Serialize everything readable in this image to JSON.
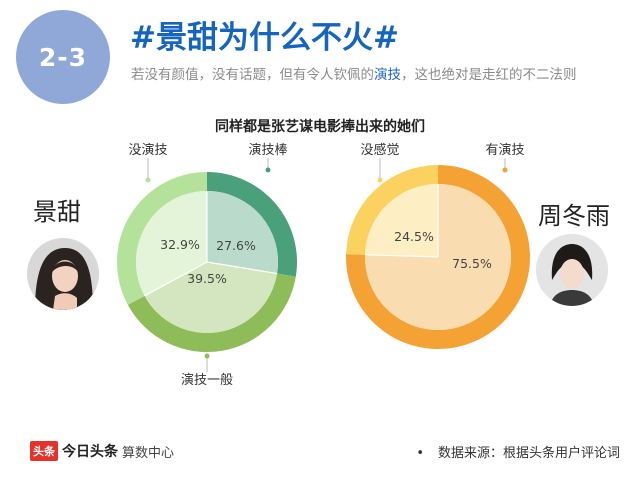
{
  "header": {
    "badge": "2-3",
    "title": "#景甜为什么不火#",
    "subtitle_before": "若没有颜值，没有话题，但有令人钦佩的",
    "subtitle_highlight": "演技",
    "subtitle_after": "，这也绝对是走红的不二法则"
  },
  "chart_title": "同样都是张艺谋电影捧出来的她们",
  "people": [
    {
      "name": "景甜"
    },
    {
      "name": "周冬雨"
    }
  ],
  "chart_data": [
    {
      "type": "pie",
      "title": "",
      "slices": [
        {
          "label": "演技棒",
          "value": 27.6,
          "text": "27.6%",
          "color": "#4aa07a"
        },
        {
          "label": "演技一般",
          "value": 39.5,
          "text": "39.5%",
          "color": "#8ebc58"
        },
        {
          "label": "没演技",
          "value": 32.9,
          "text": "32.9%",
          "color": "#b5e29a"
        }
      ]
    },
    {
      "type": "pie",
      "title": "",
      "slices": [
        {
          "label": "有演技",
          "value": 75.5,
          "text": "75.5%",
          "color": "#f3a233"
        },
        {
          "label": "没感觉",
          "value": 24.5,
          "text": "24.5%",
          "color": "#fbd260"
        }
      ]
    }
  ],
  "footer": {
    "logo_box": "头条",
    "logo_main": "今日头条",
    "logo_sub": "算数中心",
    "bullet": "•",
    "source": "数据来源：根据头条用户评论词"
  }
}
